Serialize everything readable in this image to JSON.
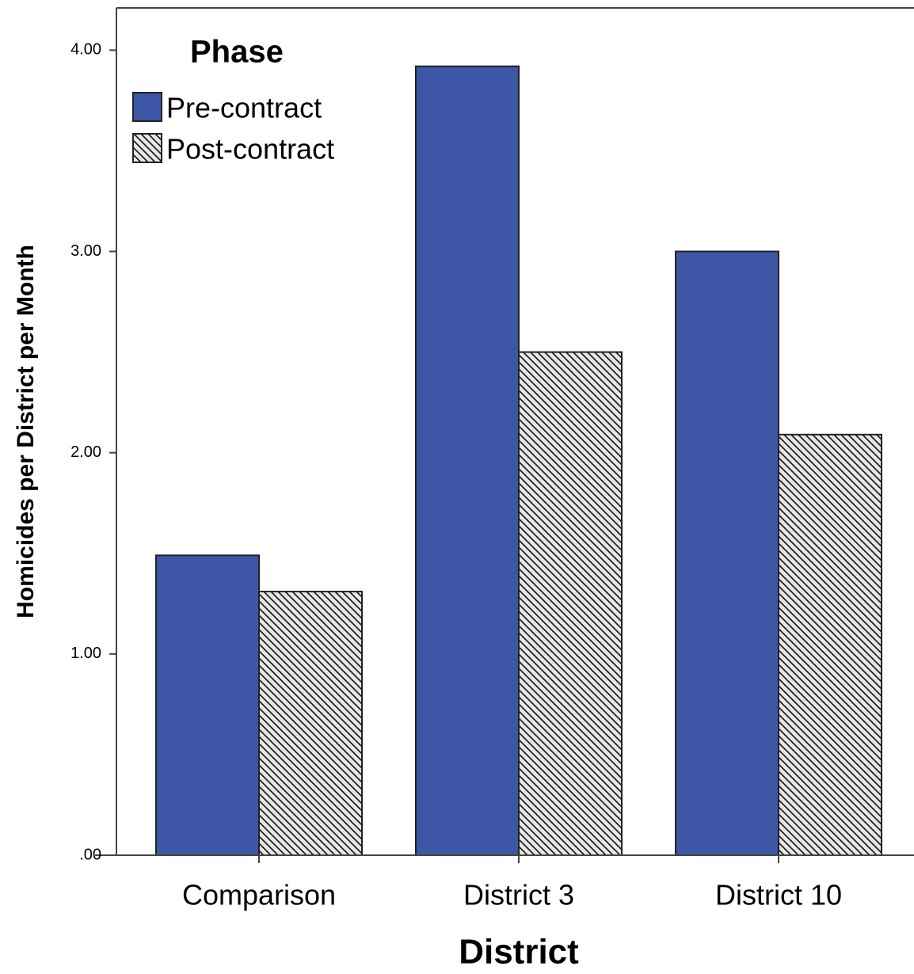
{
  "chart_data": {
    "type": "bar",
    "x_label": "District",
    "y_label": "Homicides per District per Month",
    "categories": [
      "Comparison",
      "District 3",
      "District 10"
    ],
    "legend_title": "Phase",
    "legend": "top-left",
    "series": [
      {
        "name": "Pre-contract",
        "color": "#3d56a6",
        "values": [
          1.49,
          3.92,
          3.0
        ]
      },
      {
        "name": "Post-contract",
        "color": "#e6e6e6",
        "pattern": "diagonal-hatch",
        "values": [
          1.31,
          2.5,
          2.09
        ]
      }
    ],
    "ylim": [
      0,
      4.21
    ],
    "yticks": [
      {
        "value": 0,
        "label": ".00"
      },
      {
        "value": 1,
        "label": "1.00"
      },
      {
        "value": 2,
        "label": "2.00"
      },
      {
        "value": 3,
        "label": "3.00"
      },
      {
        "value": 4,
        "label": "4.00"
      }
    ],
    "grid": false
  }
}
